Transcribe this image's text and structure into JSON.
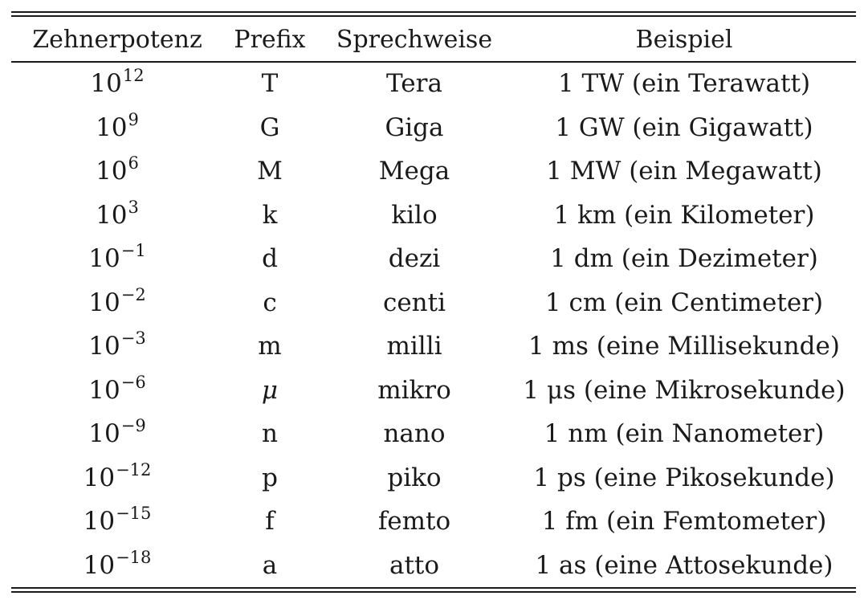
{
  "headers": {
    "power": "Zehnerpotenz",
    "prefix": "Prefix",
    "spoken": "Sprechweise",
    "example": "Beispiel"
  },
  "rows": [
    {
      "base": "10",
      "exponent": "12",
      "prefix": "T",
      "spoken": "Tera",
      "example": "1 TW (ein Terawatt)"
    },
    {
      "base": "10",
      "exponent": "9",
      "prefix": "G",
      "spoken": "Giga",
      "example": "1 GW (ein Gigawatt)"
    },
    {
      "base": "10",
      "exponent": "6",
      "prefix": "M",
      "spoken": "Mega",
      "example": "1 MW (ein Megawatt)"
    },
    {
      "base": "10",
      "exponent": "3",
      "prefix": "k",
      "spoken": "kilo",
      "example": "1 km (ein Kilometer)"
    },
    {
      "base": "10",
      "exponent": "−1",
      "prefix": "d",
      "spoken": "dezi",
      "example": "1 dm (ein Dezimeter)"
    },
    {
      "base": "10",
      "exponent": "−2",
      "prefix": "c",
      "spoken": "centi",
      "example": "1 cm (ein Centimeter)"
    },
    {
      "base": "10",
      "exponent": "−3",
      "prefix": "m",
      "spoken": "milli",
      "example": "1 ms (eine Millisekunde)"
    },
    {
      "base": "10",
      "exponent": "−6",
      "prefix": "μ",
      "spoken": "mikro",
      "example": "1 μs (eine Mikrosekunde)"
    },
    {
      "base": "10",
      "exponent": "−9",
      "prefix": "n",
      "spoken": "nano",
      "example": "1 nm (ein Nanometer)"
    },
    {
      "base": "10",
      "exponent": "−12",
      "prefix": "p",
      "spoken": "piko",
      "example": "1 ps (eine Pikosekunde)"
    },
    {
      "base": "10",
      "exponent": "−15",
      "prefix": "f",
      "spoken": "femto",
      "example": "1 fm (ein Femtometer)"
    },
    {
      "base": "10",
      "exponent": "−18",
      "prefix": "a",
      "spoken": "atto",
      "example": "1 as (eine Attosekunde)"
    }
  ]
}
